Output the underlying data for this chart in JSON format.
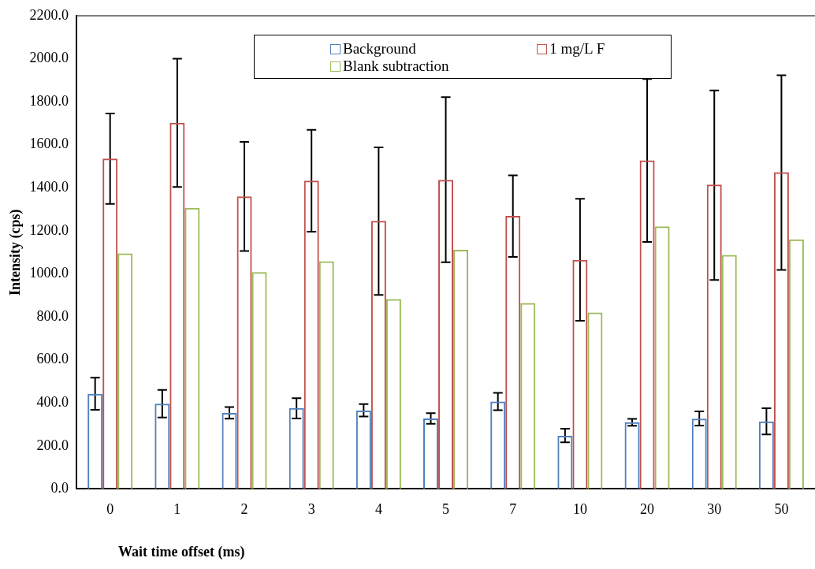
{
  "chart_data": {
    "type": "bar",
    "xlabel": "Wait time offset (ms)",
    "ylabel": "Intensity (cps)",
    "categories": [
      "0",
      "1",
      "2",
      "3",
      "4",
      "5",
      "7",
      "10",
      "20",
      "30",
      "50"
    ],
    "series": [
      {
        "name": "Background",
        "color": "#4f81bd",
        "values": [
          442,
          396,
          353,
          376,
          364,
          328,
          406,
          247,
          310,
          327,
          314
        ],
        "errors": [
          [
            368,
            517
          ],
          [
            332,
            460
          ],
          [
            327,
            381
          ],
          [
            328,
            422
          ],
          [
            337,
            394
          ],
          [
            303,
            352
          ],
          [
            366,
            447
          ],
          [
            217,
            280
          ],
          [
            294,
            326
          ],
          [
            295,
            361
          ],
          [
            253,
            375
          ]
        ]
      },
      {
        "name": "1 mg/L F",
        "color": "#c0504d",
        "values": [
          1536,
          1703,
          1360,
          1433,
          1246,
          1437,
          1269,
          1065,
          1528,
          1415,
          1473
        ],
        "errors": [
          [
            1325,
            1746
          ],
          [
            1404,
            2000
          ],
          [
            1106,
            1614
          ],
          [
            1196,
            1670
          ],
          [
            902,
            1588
          ],
          [
            1054,
            1822
          ],
          [
            1079,
            1458
          ],
          [
            782,
            1349
          ],
          [
            1148,
            1906
          ],
          [
            972,
            1853
          ],
          [
            1018,
            1923
          ]
        ]
      },
      {
        "name": "Blank subtraction",
        "color": "#9bbb59",
        "values": [
          1095,
          1307,
          1008,
          1059,
          883,
          1112,
          864,
          820,
          1221,
          1088,
          1160
        ]
      }
    ],
    "ylim": [
      0,
      2200
    ],
    "yticks": [
      {
        "value": 0,
        "label": "0.0"
      },
      {
        "value": 200,
        "label": "200.0"
      },
      {
        "value": 400,
        "label": "400.0"
      },
      {
        "value": 600,
        "label": "600.0"
      },
      {
        "value": 800,
        "label": "800.0"
      },
      {
        "value": 1000,
        "label": "1000.0"
      },
      {
        "value": 1200,
        "label": "1200.0"
      },
      {
        "value": 1400,
        "label": "1400.0"
      },
      {
        "value": 1600,
        "label": "1600.0"
      },
      {
        "value": 1800,
        "label": "1800.0"
      },
      {
        "value": 2000,
        "label": "2000.0"
      },
      {
        "value": 2200,
        "label": "2200.0"
      }
    ],
    "grid": false,
    "legend": "top"
  }
}
